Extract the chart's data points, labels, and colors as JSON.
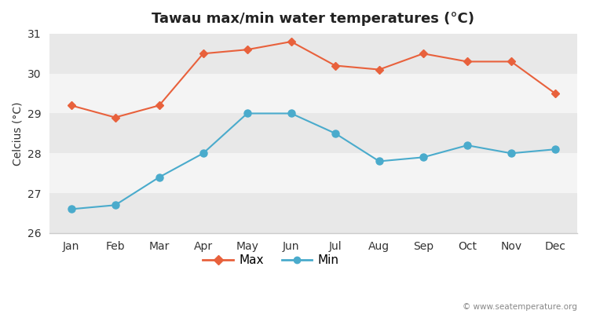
{
  "months": [
    "Jan",
    "Feb",
    "Mar",
    "Apr",
    "May",
    "Jun",
    "Jul",
    "Aug",
    "Sep",
    "Oct",
    "Nov",
    "Dec"
  ],
  "max_temps": [
    29.2,
    28.9,
    29.2,
    30.5,
    30.6,
    30.8,
    30.2,
    30.1,
    30.5,
    30.3,
    30.3,
    29.5
  ],
  "min_temps": [
    26.6,
    26.7,
    27.4,
    28.0,
    29.0,
    29.0,
    28.5,
    27.8,
    27.9,
    28.2,
    28.0,
    28.1
  ],
  "max_color": "#E8613C",
  "min_color": "#4AABCC",
  "bg_color": "#ffffff",
  "band_colors": [
    "#e8e8e8",
    "#f4f4f4"
  ],
  "title": "Tawau max/min water temperatures (°C)",
  "ylabel": "Celcius (°C)",
  "ylim": [
    26,
    31
  ],
  "yticks": [
    26,
    27,
    28,
    29,
    30,
    31
  ],
  "watermark": "© www.seatemperature.org",
  "legend_max": "Max",
  "legend_min": "Min"
}
